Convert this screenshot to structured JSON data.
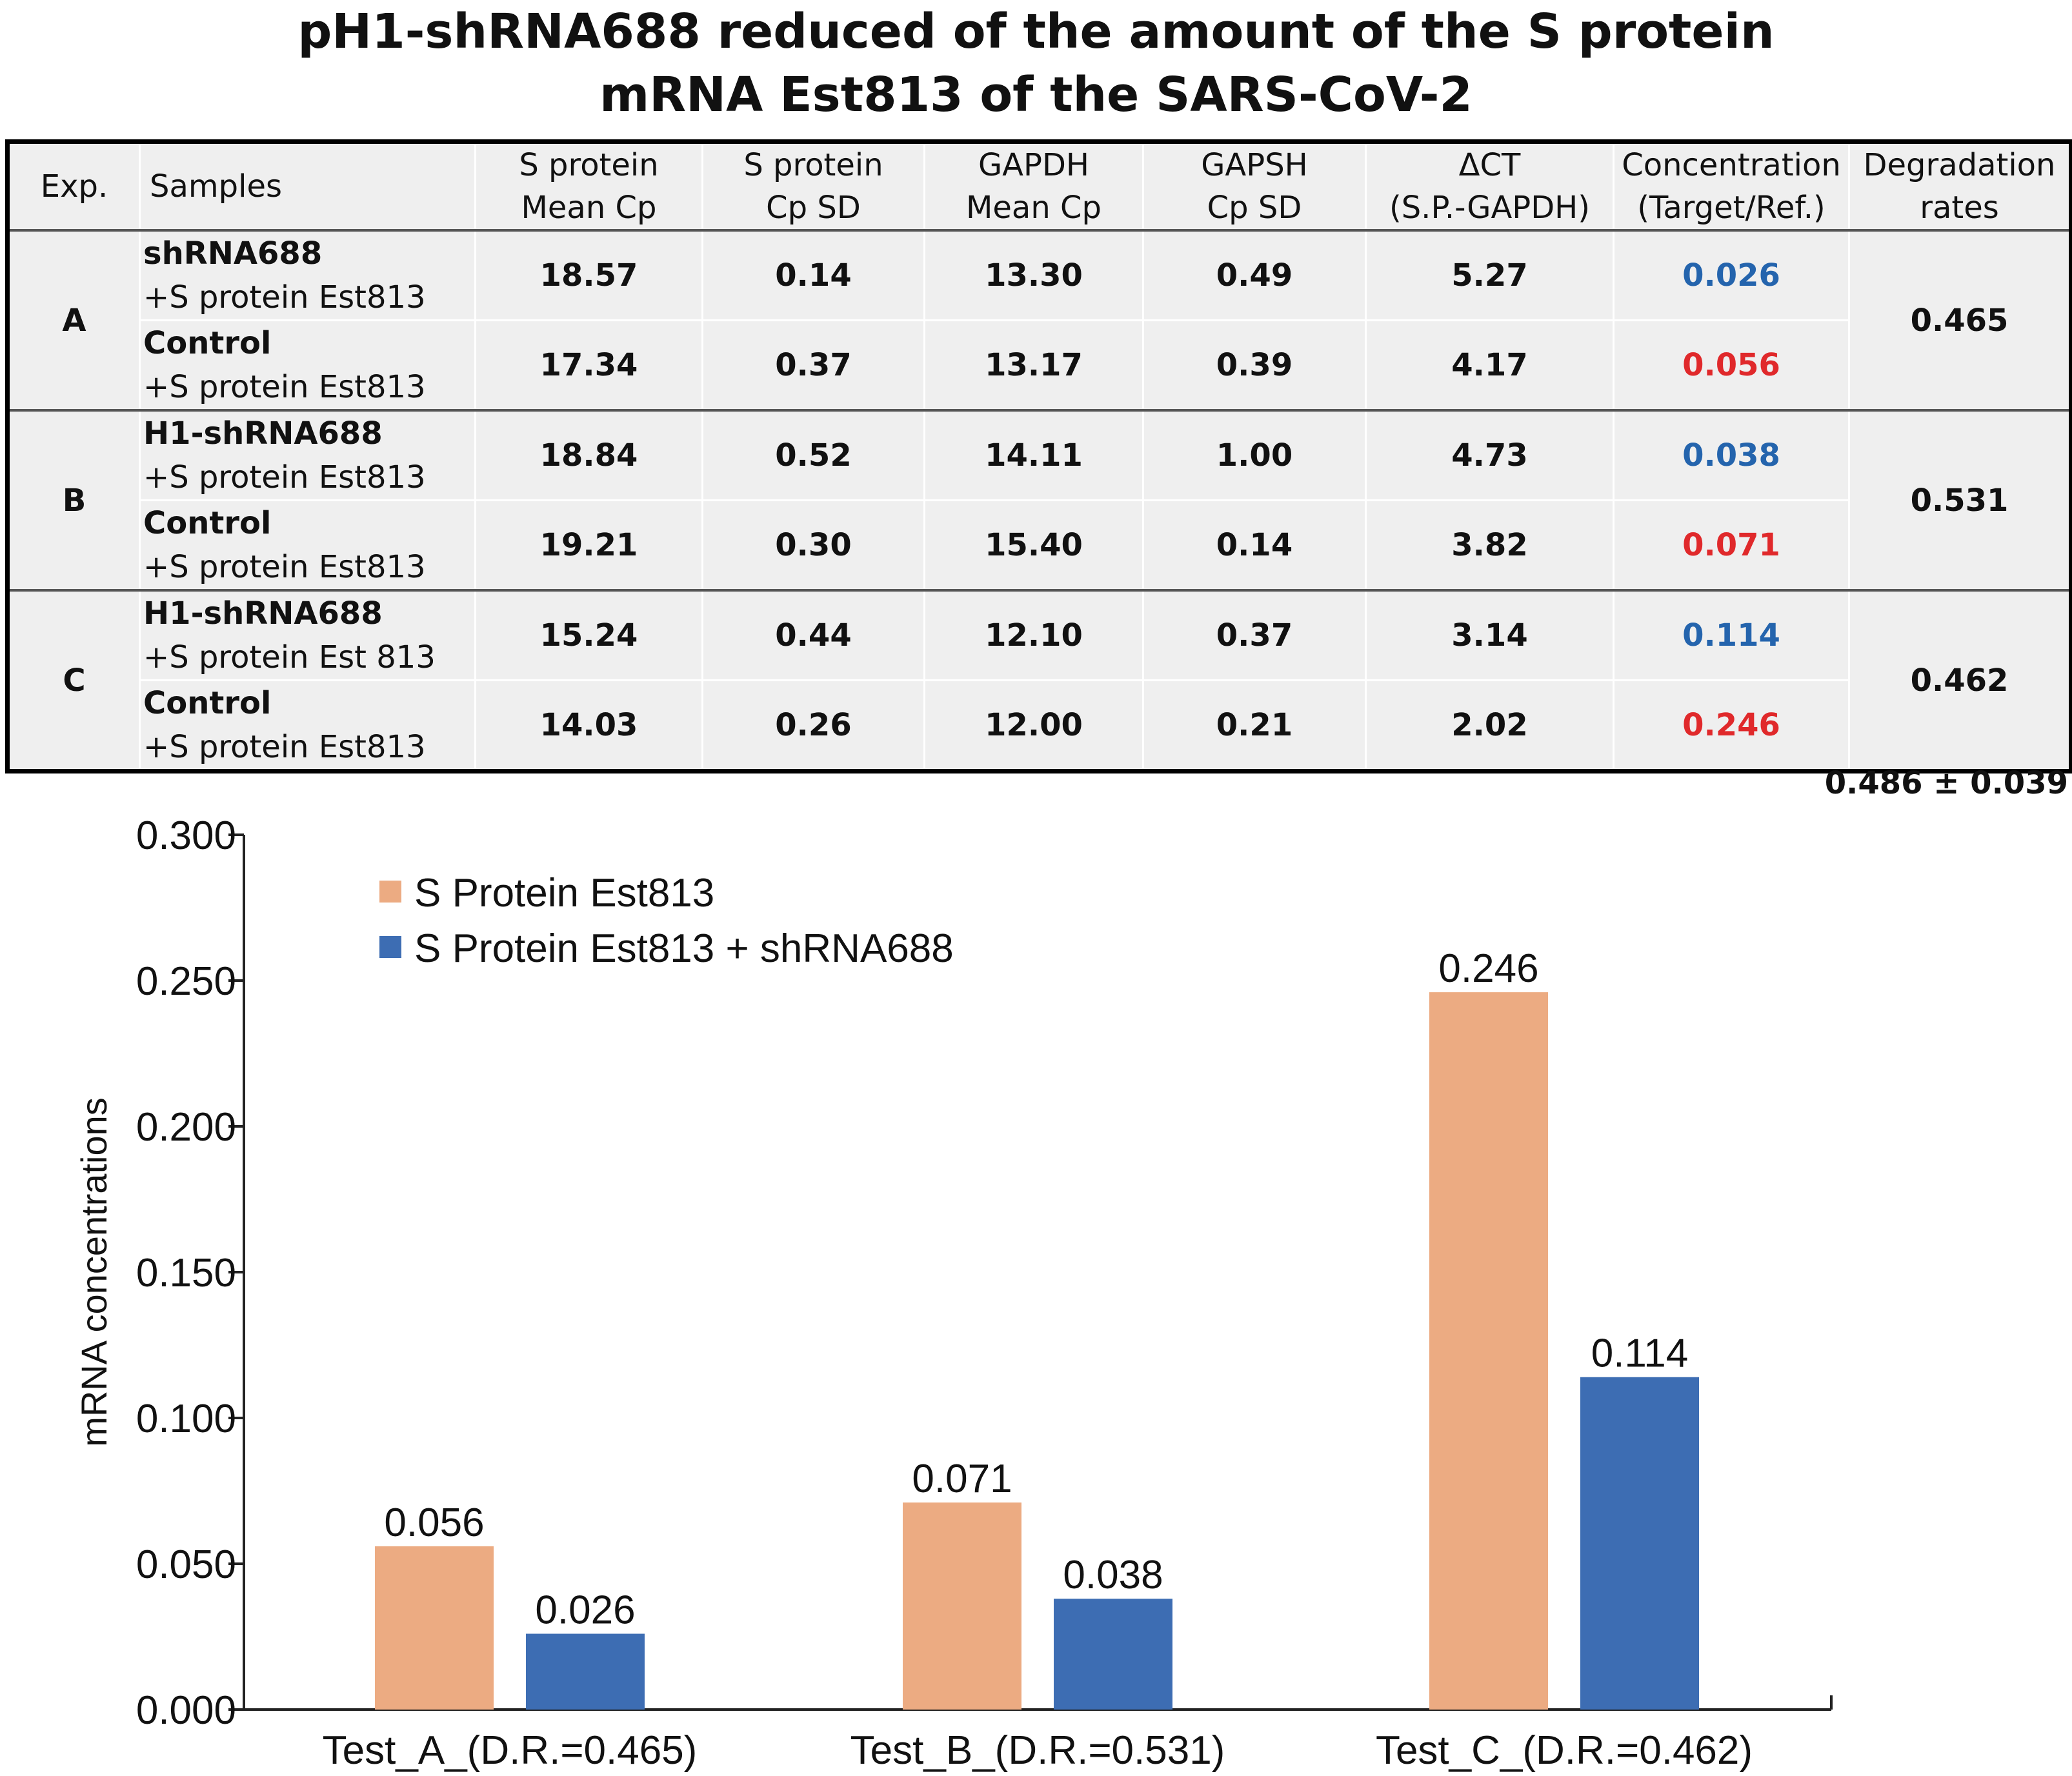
{
  "title": {
    "line1": "pH1-shRNA688 reduced of the amount of the S protein",
    "line2": "mRNA Est813 of the SARS-CoV-2"
  },
  "table": {
    "headers": {
      "exp": "Exp.",
      "samples": "Samples",
      "sp_mean_1": "S protein",
      "sp_mean_2": "Mean Cp",
      "sp_sd_1": "S protein",
      "sp_sd_2": "Cp SD",
      "gapdh_mean_1": "GAPDH",
      "gapdh_mean_2": "Mean Cp",
      "gapsh_sd_1": "GAPSH",
      "gapsh_sd_2": "Cp SD",
      "dct_1": "ΔCT",
      "dct_2": "(S.P.-GAPDH)",
      "conc_1": "Concentration",
      "conc_2": "(Target/Ref.)",
      "deg_1": "Degradation",
      "deg_2": "rates"
    },
    "groups": [
      {
        "exp": "A",
        "degradation": "0.465",
        "rows": [
          {
            "name": "shRNA688",
            "sub": "+S protein Est813",
            "sp_mean": "18.57",
            "sp_sd": "0.14",
            "gapdh_mean": "13.30",
            "gapsh_sd": "0.49",
            "dct": "5.27",
            "conc": "0.026"
          },
          {
            "name": "Control",
            "sub": "+S protein Est813",
            "sp_mean": "17.34",
            "sp_sd": "0.37",
            "gapdh_mean": "13.17",
            "gapsh_sd": "0.39",
            "dct": "4.17",
            "conc": "0.056"
          }
        ]
      },
      {
        "exp": "B",
        "degradation": "0.531",
        "rows": [
          {
            "name": "H1-shRNA688",
            "sub": "+S protein Est813",
            "sp_mean": "18.84",
            "sp_sd": "0.52",
            "gapdh_mean": "14.11",
            "gapsh_sd": "1.00",
            "dct": "4.73",
            "conc": "0.038"
          },
          {
            "name": "Control",
            "sub": "+S protein Est813",
            "sp_mean": "19.21",
            "sp_sd": "0.30",
            "gapdh_mean": "15.40",
            "gapsh_sd": "0.14",
            "dct": "3.82",
            "conc": "0.071"
          }
        ]
      },
      {
        "exp": "C",
        "degradation": "0.462",
        "rows": [
          {
            "name": "H1-shRNA688",
            "sub": "+S protein Est 813",
            "sp_mean": "15.24",
            "sp_sd": "0.44",
            "gapdh_mean": "12.10",
            "gapsh_sd": "0.37",
            "dct": "3.14",
            "conc": "0.114"
          },
          {
            "name": "Control",
            "sub": "+S protein Est813",
            "sp_mean": "14.03",
            "sp_sd": "0.26",
            "gapdh_mean": "12.00",
            "gapsh_sd": "0.21",
            "dct": "2.02",
            "conc": "0.246"
          }
        ]
      }
    ],
    "mean_degradation": "0.486 ± 0.039"
  },
  "colors": {
    "control_bar": "#ecab82",
    "shrna_bar": "#3d6db3",
    "conc_shrna_text": "#2464ad",
    "conc_control_text": "#e0292b"
  },
  "chart_data": {
    "type": "bar",
    "categories": [
      "Test_A_(D.R.=0.465)",
      "Test_B_(D.R.=0.531)",
      "Test_C_(D.R.=0.462)"
    ],
    "series": [
      {
        "name": "S Protein Est813",
        "values": [
          0.056,
          0.071,
          0.246
        ],
        "labels": [
          "0.056",
          "0.071",
          "0.246"
        ]
      },
      {
        "name": "S Protein Est813 + shRNA688",
        "values": [
          0.026,
          0.038,
          0.114
        ],
        "labels": [
          "0.026",
          "0.038",
          "0.114"
        ]
      }
    ],
    "title": "",
    "xlabel": "",
    "ylabel": "mRNA concentrations",
    "ylim": [
      0,
      0.3
    ],
    "yticks": [
      "0.000",
      "0.050",
      "0.100",
      "0.150",
      "0.200",
      "0.250",
      "0.300"
    ],
    "legend_position": "top-left",
    "grid": false
  }
}
